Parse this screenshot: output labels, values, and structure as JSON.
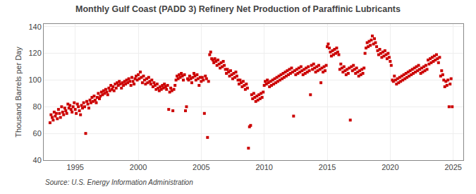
{
  "chart_data": {
    "type": "scatter",
    "title": "Monthly Gulf Coast (PADD 3) Refinery Net Production of Paraffinic Lubricants",
    "y_label": "Thousand Barrels per Day",
    "annotations": [
      "Source: U.S. Energy Information Administration"
    ],
    "color": "#CC0000",
    "marker": "square",
    "grid": true,
    "xlim": [
      1992.5,
      2025.8
    ],
    "xticks": [
      1995,
      2000,
      2005,
      2010,
      2015,
      2020,
      2025
    ],
    "ylim": [
      40,
      142
    ],
    "yticks": [
      40,
      60,
      80,
      100,
      120,
      140
    ],
    "x": [
      1993.0,
      1993.08,
      1993.17,
      1993.25,
      1993.33,
      1993.42,
      1993.5,
      1993.58,
      1993.67,
      1993.75,
      1993.83,
      1993.92,
      1994.0,
      1994.08,
      1994.17,
      1994.25,
      1994.33,
      1994.42,
      1994.5,
      1994.58,
      1994.67,
      1994.75,
      1994.83,
      1994.92,
      1995.0,
      1995.08,
      1995.17,
      1995.25,
      1995.33,
      1995.42,
      1995.5,
      1995.58,
      1995.67,
      1995.75,
      1995.83,
      1995.92,
      1996.0,
      1996.08,
      1996.17,
      1996.25,
      1996.33,
      1996.42,
      1996.5,
      1996.58,
      1996.67,
      1996.75,
      1996.83,
      1996.92,
      1997.0,
      1997.08,
      1997.17,
      1997.25,
      1997.33,
      1997.42,
      1997.5,
      1997.58,
      1997.67,
      1997.75,
      1997.83,
      1997.92,
      1998.0,
      1998.08,
      1998.17,
      1998.25,
      1998.33,
      1998.42,
      1998.5,
      1998.58,
      1998.67,
      1998.75,
      1998.83,
      1998.92,
      1999.0,
      1999.08,
      1999.17,
      1999.25,
      1999.33,
      1999.42,
      1999.5,
      1999.58,
      1999.67,
      1999.75,
      1999.83,
      1999.92,
      2000.0,
      2000.08,
      2000.17,
      2000.25,
      2000.33,
      2000.42,
      2000.5,
      2000.58,
      2000.67,
      2000.75,
      2000.83,
      2000.92,
      2001.0,
      2001.08,
      2001.17,
      2001.25,
      2001.33,
      2001.42,
      2001.5,
      2001.58,
      2001.67,
      2001.75,
      2001.83,
      2001.92,
      2002.0,
      2002.08,
      2002.17,
      2002.25,
      2002.33,
      2002.42,
      2002.5,
      2002.58,
      2002.67,
      2002.75,
      2002.83,
      2002.92,
      2003.0,
      2003.08,
      2003.17,
      2003.25,
      2003.33,
      2003.42,
      2003.5,
      2003.58,
      2003.67,
      2003.75,
      2003.83,
      2003.92,
      2004.0,
      2004.08,
      2004.17,
      2004.25,
      2004.33,
      2004.42,
      2004.5,
      2004.58,
      2004.67,
      2004.75,
      2004.83,
      2004.92,
      2005.0,
      2005.08,
      2005.17,
      2005.25,
      2005.33,
      2005.42,
      2005.5,
      2005.58,
      2005.67,
      2005.75,
      2005.83,
      2005.92,
      2006.0,
      2006.08,
      2006.17,
      2006.25,
      2006.33,
      2006.42,
      2006.5,
      2006.58,
      2006.67,
      2006.75,
      2006.83,
      2006.92,
      2007.0,
      2007.08,
      2007.17,
      2007.25,
      2007.33,
      2007.42,
      2007.5,
      2007.58,
      2007.67,
      2007.75,
      2007.83,
      2007.92,
      2008.0,
      2008.08,
      2008.17,
      2008.25,
      2008.33,
      2008.42,
      2008.5,
      2008.58,
      2008.67,
      2008.75,
      2008.83,
      2008.92,
      2009.0,
      2009.08,
      2009.17,
      2009.25,
      2009.33,
      2009.42,
      2009.5,
      2009.58,
      2009.67,
      2009.75,
      2009.83,
      2009.92,
      2010.0,
      2010.08,
      2010.17,
      2010.25,
      2010.33,
      2010.42,
      2010.5,
      2010.58,
      2010.67,
      2010.75,
      2010.83,
      2010.92,
      2011.0,
      2011.08,
      2011.17,
      2011.25,
      2011.33,
      2011.42,
      2011.5,
      2011.58,
      2011.67,
      2011.75,
      2011.83,
      2011.92,
      2012.0,
      2012.08,
      2012.17,
      2012.25,
      2012.33,
      2012.42,
      2012.5,
      2012.58,
      2012.67,
      2012.75,
      2012.83,
      2012.92,
      2013.0,
      2013.08,
      2013.17,
      2013.25,
      2013.33,
      2013.42,
      2013.5,
      2013.58,
      2013.67,
      2013.75,
      2013.83,
      2013.92,
      2014.0,
      2014.08,
      2014.17,
      2014.25,
      2014.33,
      2014.42,
      2014.5,
      2014.58,
      2014.67,
      2014.75,
      2014.83,
      2014.92,
      2015.0,
      2015.08,
      2015.17,
      2015.25,
      2015.33,
      2015.42,
      2015.5,
      2015.58,
      2015.67,
      2015.75,
      2015.83,
      2015.92,
      2016.0,
      2016.08,
      2016.17,
      2016.25,
      2016.33,
      2016.42,
      2016.5,
      2016.58,
      2016.67,
      2016.75,
      2016.83,
      2016.92,
      2017.0,
      2017.08,
      2017.17,
      2017.25,
      2017.33,
      2017.42,
      2017.5,
      2017.58,
      2017.67,
      2017.75,
      2017.83,
      2017.92,
      2018.0,
      2018.08,
      2018.17,
      2018.25,
      2018.33,
      2018.42,
      2018.5,
      2018.58,
      2018.67,
      2018.75,
      2018.83,
      2018.92,
      2019.0,
      2019.08,
      2019.17,
      2019.25,
      2019.33,
      2019.42,
      2019.5,
      2019.58,
      2019.67,
      2019.75,
      2019.83,
      2019.92,
      2020.0,
      2020.08,
      2020.17,
      2020.25,
      2020.33,
      2020.42,
      2020.5,
      2020.58,
      2020.67,
      2020.75,
      2020.83,
      2020.92,
      2021.0,
      2021.08,
      2021.17,
      2021.25,
      2021.33,
      2021.42,
      2021.5,
      2021.58,
      2021.67,
      2021.75,
      2021.83,
      2021.92,
      2022.0,
      2022.08,
      2022.17,
      2022.25,
      2022.33,
      2022.42,
      2022.5,
      2022.58,
      2022.67,
      2022.75,
      2022.83,
      2022.92,
      2023.0,
      2023.08,
      2023.17,
      2023.25,
      2023.33,
      2023.42,
      2023.5,
      2023.58,
      2023.67,
      2023.75,
      2023.83,
      2023.92,
      2024.0,
      2024.08,
      2024.17,
      2024.25,
      2024.33,
      2024.42,
      2024.5,
      2024.58,
      2024.67,
      2024.75,
      2024.83,
      2024.92
    ],
    "values": [
      68,
      74,
      72,
      70,
      76,
      73,
      75,
      71,
      78,
      75,
      72,
      80,
      76,
      74,
      79,
      77,
      75,
      82,
      79,
      81,
      78,
      76,
      80,
      83,
      78,
      75,
      82,
      80,
      77,
      74,
      81,
      79,
      83,
      80,
      60,
      84,
      82,
      79,
      85,
      83,
      87,
      84,
      88,
      85,
      83,
      87,
      90,
      86,
      88,
      91,
      89,
      92,
      90,
      93,
      91,
      89,
      94,
      92,
      96,
      93,
      95,
      92,
      97,
      94,
      98,
      96,
      99,
      97,
      94,
      98,
      96,
      99,
      97,
      100,
      98,
      101,
      99,
      96,
      102,
      99,
      97,
      101,
      103,
      100,
      104,
      101,
      106,
      102,
      98,
      103,
      100,
      97,
      101,
      98,
      102,
      99,
      97,
      100,
      95,
      98,
      96,
      93,
      97,
      94,
      92,
      95,
      93,
      96,
      94,
      97,
      95,
      93,
      96,
      78,
      91,
      94,
      92,
      77,
      93,
      96,
      100,
      103,
      101,
      104,
      102,
      105,
      103,
      100,
      104,
      77,
      80,
      101,
      100,
      103,
      101,
      98,
      102,
      105,
      103,
      100,
      104,
      101,
      96,
      102,
      99,
      102,
      100,
      75,
      103,
      101,
      57,
      99,
      119,
      121,
      116,
      115,
      113,
      116,
      114,
      111,
      115,
      112,
      109,
      113,
      110,
      114,
      111,
      108,
      105,
      108,
      106,
      103,
      107,
      104,
      101,
      105,
      102,
      106,
      103,
      100,
      97,
      100,
      98,
      95,
      99,
      96,
      93,
      97,
      94,
      49,
      65,
      66,
      89,
      86,
      90,
      87,
      84,
      88,
      85,
      89,
      86,
      90,
      87,
      91,
      96,
      99,
      97,
      100,
      98,
      95,
      99,
      96,
      100,
      97,
      101,
      98,
      102,
      99,
      103,
      100,
      104,
      101,
      105,
      102,
      106,
      103,
      107,
      104,
      108,
      105,
      109,
      106,
      73,
      107,
      104,
      108,
      105,
      109,
      106,
      110,
      107,
      104,
      108,
      105,
      109,
      106,
      110,
      107,
      89,
      111,
      108,
      112,
      109,
      106,
      110,
      107,
      111,
      108,
      98,
      109,
      106,
      110,
      107,
      111,
      125,
      127,
      124,
      121,
      118,
      122,
      119,
      123,
      120,
      124,
      121,
      119,
      108,
      112,
      109,
      106,
      110,
      107,
      104,
      108,
      105,
      109,
      70,
      110,
      107,
      111,
      108,
      105,
      109,
      106,
      103,
      107,
      104,
      108,
      105,
      109,
      120,
      124,
      128,
      125,
      129,
      126,
      130,
      133,
      127,
      131,
      128,
      125,
      122,
      119,
      123,
      120,
      117,
      121,
      118,
      122,
      119,
      116,
      120,
      117,
      114,
      111,
      100,
      99,
      103,
      100,
      97,
      101,
      98,
      102,
      99,
      103,
      100,
      104,
      101,
      105,
      102,
      106,
      103,
      107,
      104,
      108,
      105,
      109,
      106,
      110,
      107,
      111,
      108,
      105,
      109,
      106,
      110,
      107,
      111,
      108,
      115,
      112,
      116,
      113,
      117,
      114,
      118,
      115,
      119,
      116,
      113,
      117,
      103,
      107,
      104,
      100,
      95,
      99,
      96,
      100,
      80,
      97,
      101,
      80
    ]
  }
}
